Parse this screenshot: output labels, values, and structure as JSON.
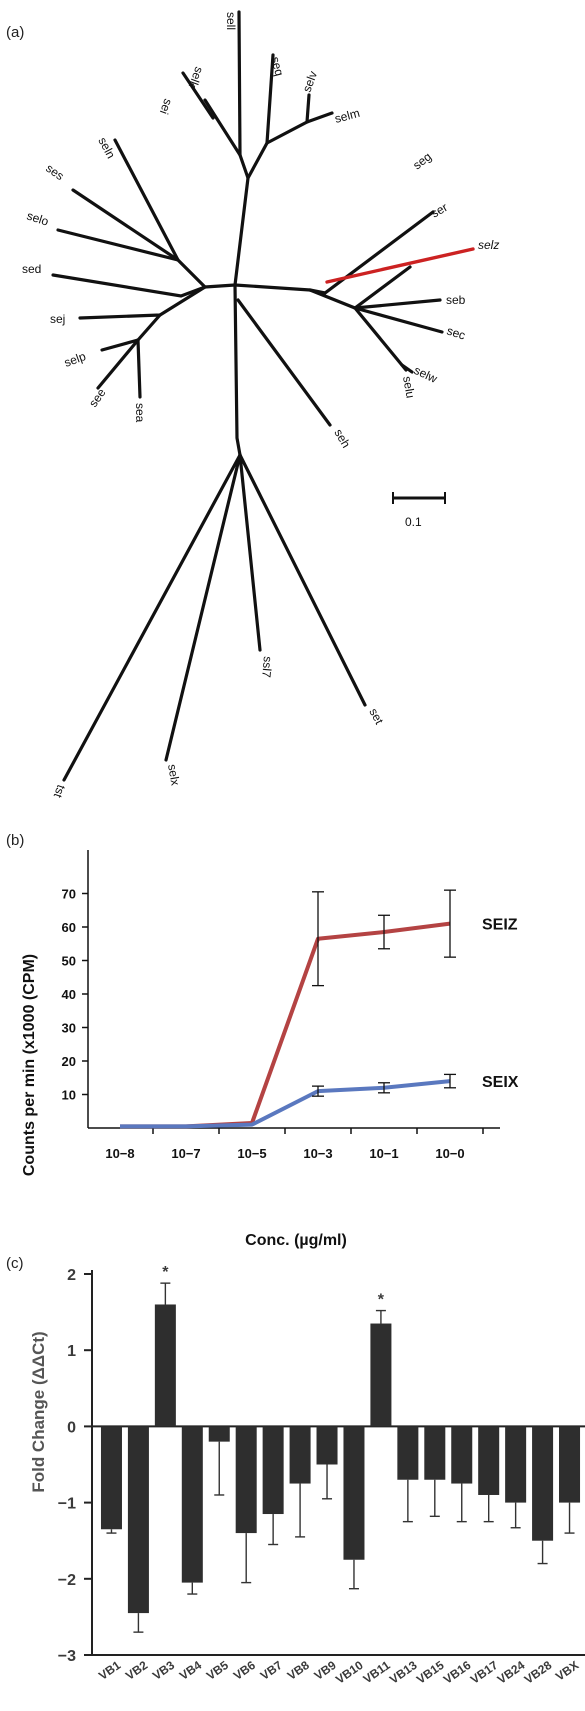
{
  "panel_a": {
    "label": "(a)",
    "scale_label": "0.1",
    "highlight_color": "#cc2222",
    "leaves": [
      "sell",
      "selk",
      "sei",
      "seq",
      "selv",
      "selm",
      "seln",
      "seg",
      "ses",
      "ser",
      "selz",
      "selo",
      "sed",
      "seb",
      "sec",
      "sej",
      "selw",
      "selu",
      "selp",
      "see",
      "sea",
      "seh",
      "ssl7",
      "set",
      "selx",
      "tst"
    ]
  },
  "panel_b": {
    "label": "(b)",
    "chart_data": {
      "type": "line",
      "categories": [
        "10−8",
        "10−7",
        "10−5",
        "10−3",
        "10−1",
        "10−0"
      ],
      "xlabel": "Conc. (µg/ml)",
      "ylabel": "Counts per min (x1000 (CPM)",
      "yticks": [
        "10",
        "20",
        "30",
        "40",
        "50",
        "60",
        "70"
      ],
      "ylim": [
        0,
        80
      ],
      "series": [
        {
          "name": "SEIZ",
          "color": "#b44343",
          "x": [
            0,
            1,
            2,
            3,
            4,
            5
          ],
          "values": [
            0.5,
            0.5,
            1.5,
            56.5,
            58.5,
            61
          ],
          "err": [
            null,
            null,
            null,
            14,
            5,
            10
          ]
        },
        {
          "name": "SEIX",
          "color": "#5a78bf",
          "x": [
            0,
            1,
            2,
            3,
            4,
            5
          ],
          "values": [
            0.5,
            0.5,
            1,
            11,
            12,
            14
          ],
          "err": [
            null,
            null,
            null,
            1.5,
            1.5,
            2
          ]
        }
      ]
    }
  },
  "panel_c": {
    "label": "(c)",
    "chart_data": {
      "type": "bar",
      "ylabel": "Fold Change (ΔΔCt)",
      "ylim": [
        -3,
        2
      ],
      "yticks": [
        "2",
        "1",
        "0",
        "−1",
        "−2",
        "−3"
      ],
      "categories": [
        "VB1",
        "VB2",
        "VB3",
        "VB4",
        "VB5",
        "VB6",
        "VB7",
        "VB8",
        "VB9",
        "VB10",
        "VB11",
        "VB13",
        "VB15",
        "VB16",
        "VB17",
        "VB24",
        "VB28",
        "VBX"
      ],
      "values": [
        -1.35,
        -2.45,
        1.6,
        -2.05,
        -0.2,
        -1.4,
        -1.15,
        -0.75,
        -0.5,
        -1.75,
        1.35,
        -0.7,
        -0.7,
        -0.75,
        -0.9,
        -1.0,
        -1.5,
        -1.0
      ],
      "err": [
        0.05,
        0.25,
        0.28,
        0.15,
        0.7,
        0.65,
        0.4,
        0.7,
        0.45,
        0.38,
        0.17,
        0.55,
        0.48,
        0.5,
        0.35,
        0.33,
        0.3,
        0.4
      ],
      "significant": [
        "VB3",
        "VB11"
      ],
      "star": "*",
      "bar_color": "#2e2e2e"
    }
  }
}
